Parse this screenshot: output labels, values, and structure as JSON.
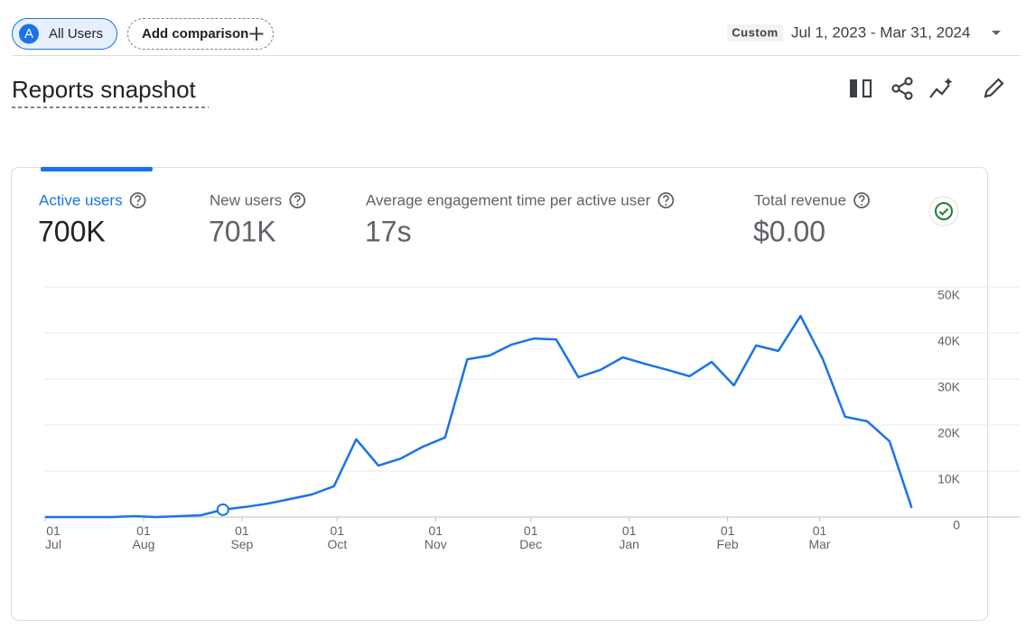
{
  "segment": {
    "badge": "A",
    "label": "All Users"
  },
  "comparison": {
    "label": "Add comparison"
  },
  "date_range": {
    "tag": "Custom",
    "text": "Jul 1, 2023 - Mar 31, 2024"
  },
  "title": "Reports snapshot",
  "metrics": [
    {
      "label": "Active users",
      "value": "700K"
    },
    {
      "label": "New users",
      "value": "701K"
    },
    {
      "label": "Average engagement time per active user",
      "value": "17s"
    },
    {
      "label": "Total revenue",
      "value": "$0.00"
    }
  ],
  "chart_data": {
    "type": "line",
    "color": "#1a73e8",
    "x": [
      0,
      7,
      14,
      21,
      28,
      35,
      42,
      49,
      56,
      63,
      70,
      77,
      84,
      91,
      98,
      105,
      112,
      119,
      126,
      133,
      140,
      147,
      154,
      161,
      168,
      175,
      182,
      189,
      196,
      203,
      210,
      217,
      224,
      231,
      238,
      245,
      252,
      259,
      266,
      273
    ],
    "values": [
      0,
      0,
      0,
      0,
      200,
      0,
      200,
      400,
      1600,
      2200,
      2900,
      3900,
      4900,
      6700,
      16900,
      11200,
      12700,
      15300,
      17300,
      34300,
      35100,
      37500,
      38800,
      38600,
      30400,
      32000,
      34700,
      33300,
      32000,
      30600,
      33700,
      28600,
      37300,
      36100,
      43700,
      34300,
      21800,
      20800,
      16500,
      2000
    ],
    "marker_index": 8,
    "xlim": [
      0,
      276
    ],
    "xticks": [
      {
        "value": 0,
        "label": "01 Jul"
      },
      {
        "value": 31,
        "label": "01 Aug"
      },
      {
        "value": 62,
        "label": "01 Sep"
      },
      {
        "value": 92,
        "label": "01 Oct"
      },
      {
        "value": 123,
        "label": "01 Nov"
      },
      {
        "value": 153,
        "label": "01 Dec"
      },
      {
        "value": 184,
        "label": "01 Jan"
      },
      {
        "value": 215,
        "label": "01 Feb"
      },
      {
        "value": 244,
        "label": "01 Mar"
      }
    ],
    "ylim": [
      0,
      50000
    ],
    "yticks": [
      0,
      {
        "value": 10000,
        "label": "10K"
      },
      {
        "value": 20000,
        "label": "20K"
      },
      {
        "value": 30000,
        "label": "30K"
      },
      {
        "value": 40000,
        "label": "40K"
      },
      {
        "value": 50000,
        "label": "50K"
      }
    ],
    "grid": true
  }
}
